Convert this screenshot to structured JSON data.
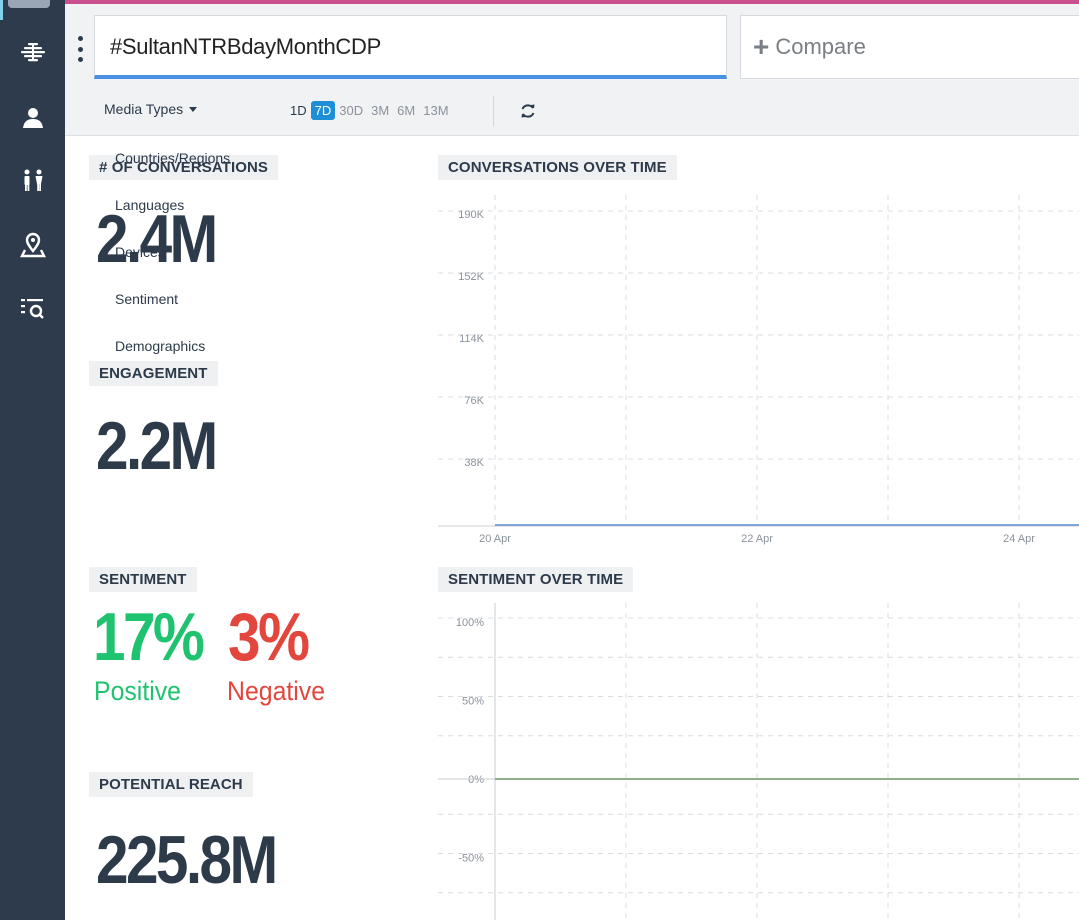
{
  "search": {
    "query": "#SultanNTRBdayMonthCDP",
    "compare_label": "Compare"
  },
  "filters": {
    "media_types_label": "Media Types",
    "ranges": [
      "1D",
      "7D",
      "30D",
      "3M",
      "6M",
      "13M"
    ],
    "active_range": "7D"
  },
  "menu": {
    "items": [
      "Countries/Regions",
      "Languages",
      "Devices",
      "Sentiment",
      "Demographics"
    ]
  },
  "sidebar": {
    "icons": [
      "brain-icon",
      "user-icon",
      "people-icon",
      "location-icon",
      "search-list-icon"
    ]
  },
  "metrics": {
    "conversations": {
      "label": "# OF CONVERSATIONS",
      "value": "2.4M"
    },
    "engagement": {
      "label": "ENGAGEMENT",
      "value": "2.2M"
    },
    "sentiment": {
      "label": "SENTIMENT",
      "positive_value": "17%",
      "positive_label": "Positive",
      "negative_value": "3%",
      "negative_label": "Negative"
    },
    "reach": {
      "label": "POTENTIAL REACH",
      "value": "225.8M"
    }
  },
  "colors": {
    "sidebar": "#2e3b4c",
    "accent": "#4a90e2",
    "active_range": "#1e8fd6",
    "positive": "#1fc26f",
    "negative": "#e3463c",
    "line_conversations": "#7fa8d8",
    "line_sentiment": "#8fb08a"
  },
  "chart_data": [
    {
      "type": "line",
      "title": "CONVERSATIONS OVER TIME",
      "y_ticks": [
        "190K",
        "152K",
        "114K",
        "76K",
        "38K"
      ],
      "y_tick_values": [
        190000,
        152000,
        114000,
        76000,
        38000
      ],
      "x_ticks": [
        "20 Apr",
        "22 Apr",
        "24 Apr"
      ],
      "ylim": [
        0,
        190000
      ],
      "grid": true,
      "series": [
        {
          "x": [
            "20 Apr",
            "22 Apr",
            "24 Apr"
          ],
          "values": [
            0,
            0,
            0
          ]
        }
      ]
    },
    {
      "type": "line",
      "title": "SENTIMENT OVER TIME",
      "y_ticks": [
        "100%",
        "50%",
        "0%",
        "-50%"
      ],
      "y_tick_values": [
        100,
        50,
        0,
        -50
      ],
      "ylim": [
        -50,
        100
      ],
      "grid": true,
      "series": [
        {
          "values": [
            0,
            0,
            0
          ]
        }
      ]
    }
  ]
}
